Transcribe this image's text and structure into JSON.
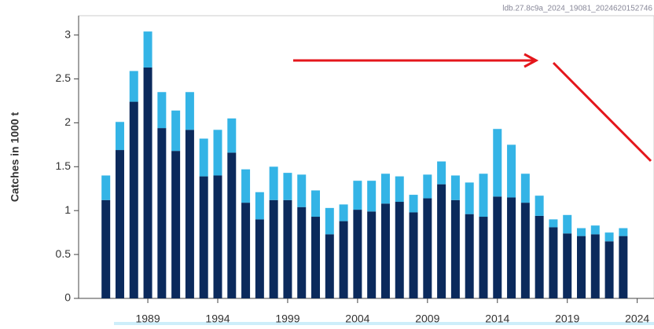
{
  "chart_data": {
    "type": "stacked_bar",
    "source_label": "ldb.27.8c9a_2024_19081_2024620152746",
    "y_label": "Catches in 1000 t",
    "x": [
      1986,
      1987,
      1988,
      1989,
      1990,
      1991,
      1992,
      1993,
      1994,
      1995,
      1996,
      1997,
      1998,
      1999,
      2000,
      2001,
      2002,
      2003,
      2004,
      2005,
      2006,
      2007,
      2008,
      2009,
      2010,
      2011,
      2012,
      2013,
      2014,
      2015,
      2016,
      2017,
      2018,
      2019,
      2020,
      2021,
      2022,
      2023
    ],
    "series": [
      {
        "color": "#0b2a5c",
        "values": [
          1.12,
          1.69,
          2.24,
          2.63,
          1.94,
          1.68,
          1.92,
          1.39,
          1.4,
          1.66,
          1.09,
          0.9,
          1.12,
          1.12,
          1.04,
          0.93,
          0.73,
          0.88,
          1.01,
          0.99,
          1.08,
          1.1,
          0.98,
          1.14,
          1.3,
          1.12,
          0.96,
          0.93,
          1.16,
          1.15,
          1.09,
          0.94,
          0.81,
          0.74,
          0.71,
          0.73,
          0.65,
          0.71
        ]
      },
      {
        "color": "#34b4e6",
        "values": [
          0.28,
          0.32,
          0.35,
          0.41,
          0.41,
          0.46,
          0.43,
          0.43,
          0.52,
          0.39,
          0.38,
          0.31,
          0.38,
          0.31,
          0.37,
          0.3,
          0.3,
          0.19,
          0.33,
          0.35,
          0.34,
          0.29,
          0.2,
          0.27,
          0.26,
          0.28,
          0.36,
          0.49,
          0.77,
          0.6,
          0.33,
          0.23,
          0.09,
          0.21,
          0.09,
          0.1,
          0.1,
          0.09
        ]
      }
    ],
    "xlim": [
      1984.05,
      2025.2
    ],
    "xticks": [
      1989,
      1994,
      1999,
      2004,
      2009,
      2014,
      2019,
      2024
    ],
    "ylim": [
      0,
      3.22
    ],
    "yticks": [
      0,
      0.5,
      1,
      1.5,
      2,
      2.5,
      3
    ],
    "grid": false
  }
}
